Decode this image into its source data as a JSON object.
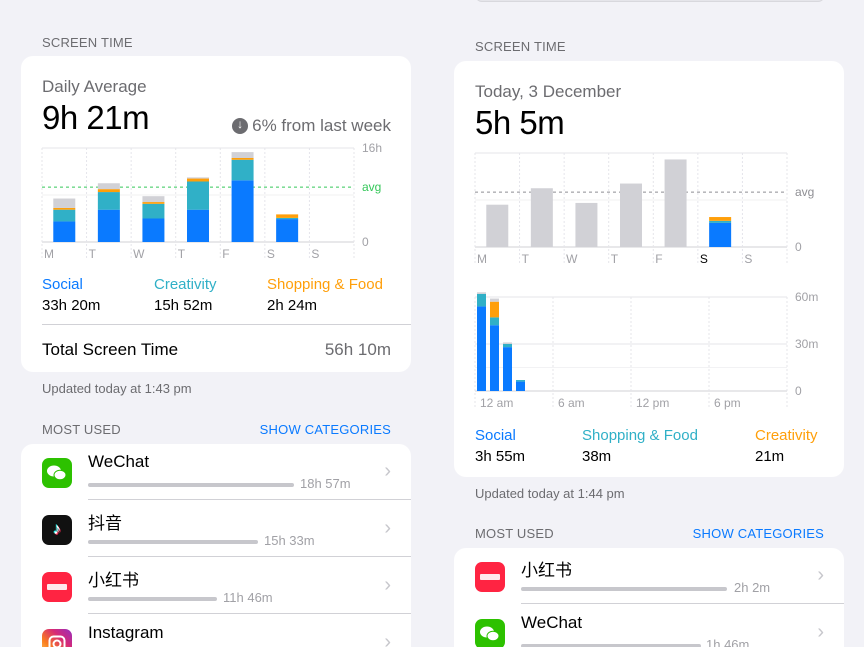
{
  "colors": {
    "social": "#0a7aff",
    "creativity": "#30b0c7",
    "shopping": "#ff9f0a",
    "other": "#c7c7cc",
    "avg_left": "#34c759",
    "accent": "#0a7aff"
  },
  "left": {
    "section_label": "SCREEN TIME",
    "subtitle": "Daily Average",
    "total": "9h 21m",
    "change": "6% from last week",
    "chart_labels": {
      "top": "16h",
      "avg": "avg",
      "zero": "0"
    },
    "legend": [
      {
        "name": "Social",
        "value": "33h 20m"
      },
      {
        "name": "Creativity",
        "value": "15h 52m"
      },
      {
        "name": "Shopping & Food",
        "value": "2h 24m"
      }
    ],
    "total_label": "Total Screen Time",
    "total_value": "56h 10m",
    "updated": "Updated today at 1:43 pm",
    "most_used_label": "MOST USED",
    "show_categories": "SHOW CATEGORIES",
    "apps": [
      {
        "name": "WeChat",
        "time": "18h 57m",
        "icon": "wechat-icon",
        "fraction": 1.0
      },
      {
        "name": "抖音",
        "time": "15h 33m",
        "icon": "douyin-icon",
        "fraction": 0.82
      },
      {
        "name": "小红书",
        "time": "11h 46m",
        "icon": "xiaohongshu-icon",
        "fraction": 0.62
      },
      {
        "name": "Instagram",
        "time": "",
        "icon": "instagram-icon",
        "fraction": 0.5
      }
    ]
  },
  "right": {
    "section_label": "SCREEN TIME",
    "subtitle": "Today, 3 December",
    "total": "5h 5m",
    "weekly_labels": {
      "avg": "avg",
      "zero": "0"
    },
    "hourly_labels": {
      "top": "60m",
      "mid": "30m",
      "zero": "0"
    },
    "legend": [
      {
        "name": "Social",
        "value": "3h 55m"
      },
      {
        "name": "Shopping & Food",
        "value": "38m"
      },
      {
        "name": "Creativity",
        "value": "21m"
      }
    ],
    "updated": "Updated today at 1:44 pm",
    "most_used_label": "MOST USED",
    "show_categories": "SHOW CATEGORIES",
    "apps": [
      {
        "name": "小红书",
        "time": "2h 2m",
        "icon": "xiaohongshu-icon",
        "fraction": 1.0
      },
      {
        "name": "WeChat",
        "time": "1h 46m",
        "icon": "wechat-icon",
        "fraction": 0.87
      }
    ]
  },
  "chart_data": [
    {
      "type": "bar",
      "title": "Daily Average",
      "categories": [
        "M",
        "T",
        "W",
        "T",
        "F",
        "S",
        "S"
      ],
      "ylim": [
        0,
        16
      ],
      "y_ticks": [
        "16h",
        "0"
      ],
      "avg": 9.35,
      "series": [
        {
          "name": "Social",
          "values": [
            3.5,
            5.5,
            4.0,
            5.5,
            10.5,
            3.9,
            0
          ]
        },
        {
          "name": "Creativity",
          "values": [
            2.0,
            3.0,
            2.5,
            4.8,
            3.5,
            0.2,
            0
          ]
        },
        {
          "name": "Shopping & Food",
          "values": [
            0.3,
            0.5,
            0.3,
            0.5,
            0.3,
            0.6,
            0
          ]
        },
        {
          "name": "",
          "values": [
            1.6,
            1.0,
            1.0,
            0.2,
            1.0,
            0,
            0
          ]
        }
      ]
    },
    {
      "type": "bar",
      "title": "Today, 3 December",
      "categories": [
        "M",
        "T",
        "W",
        "T",
        "F",
        "S",
        "S"
      ],
      "avg": 9.35,
      "ylim": [
        0,
        16
      ],
      "y_ticks": [
        "avg",
        "0"
      ],
      "series": [
        {
          "name": "",
          "values": [
            7.2,
            10.0,
            7.5,
            10.8,
            14.9,
            0,
            0
          ]
        },
        {
          "name": "Social",
          "values": [
            0,
            0,
            0,
            0,
            0,
            4.1,
            0
          ]
        },
        {
          "name": "Creativity",
          "values": [
            0,
            0,
            0,
            0,
            0,
            0.35,
            0
          ]
        },
        {
          "name": "Shopping & Food",
          "values": [
            0,
            0,
            0,
            0,
            0,
            0.65,
            0
          ]
        }
      ]
    },
    {
      "type": "bar",
      "title": "",
      "x_ticks": [
        "12 am",
        "6 am",
        "12 pm",
        "6 pm"
      ],
      "ylim": [
        0,
        60
      ],
      "y_ticks": [
        "60m",
        "30m",
        "0"
      ],
      "x": [
        0,
        1,
        2,
        3,
        4,
        5,
        6,
        7,
        8,
        9,
        10,
        11,
        12,
        13,
        14,
        15,
        16,
        17,
        18,
        19,
        20,
        21,
        22,
        23
      ],
      "series": [
        {
          "name": "Social",
          "values": [
            54,
            42,
            28,
            6,
            0,
            0,
            0,
            0,
            0,
            0,
            0,
            0,
            0,
            0,
            0,
            0,
            0,
            0,
            0,
            0,
            0,
            0,
            0,
            0
          ]
        },
        {
          "name": "Creativity",
          "values": [
            8,
            5,
            2,
            1,
            0,
            0,
            0,
            0,
            0,
            0,
            0,
            0,
            0,
            0,
            0,
            0,
            0,
            0,
            0,
            0,
            0,
            0,
            0,
            0
          ]
        },
        {
          "name": "Shopping & Food",
          "values": [
            0,
            10,
            0,
            0,
            0,
            0,
            0,
            0,
            0,
            0,
            0,
            0,
            0,
            0,
            0,
            0,
            0,
            0,
            0,
            0,
            0,
            0,
            0,
            0
          ]
        },
        {
          "name": "",
          "values": [
            1,
            2,
            1,
            0,
            0,
            0,
            0,
            0,
            0,
            0,
            0,
            0,
            0,
            0,
            0,
            0,
            0,
            0,
            0,
            0,
            0,
            0,
            0,
            0
          ]
        }
      ],
      "hour_totals_note_free": true
    }
  ]
}
